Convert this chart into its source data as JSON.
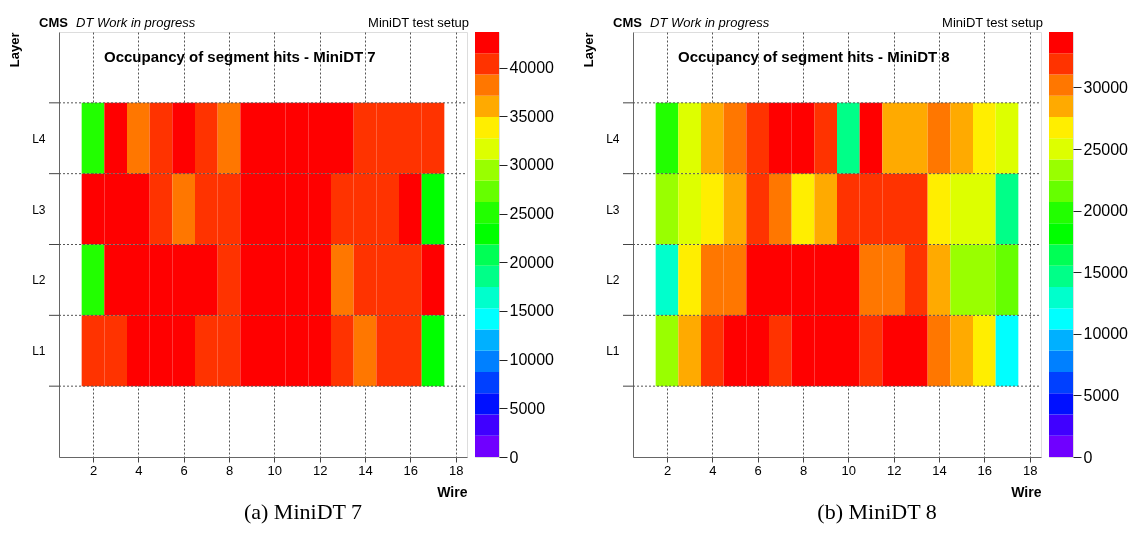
{
  "chart_data": [
    {
      "type": "heatmap",
      "title": "Occupancy of segment hits - MiniDT 7",
      "xlabel": "Wire",
      "ylabel": "Layer",
      "annotations": [
        "CMS",
        "DT Work in progress",
        "MiniDT test setup",
        "(a) MiniDT 7"
      ],
      "x": [
        2,
        3,
        4,
        5,
        6,
        7,
        8,
        9,
        10,
        11,
        12,
        13,
        14,
        15,
        16,
        17
      ],
      "y_categories": [
        "L4",
        "L3",
        "L2",
        "L1"
      ],
      "cells": [
        [
          25000,
          42500,
          38200,
          40400,
          42500,
          40400,
          38200,
          42500,
          42500,
          42500,
          42500,
          42500,
          40400,
          40400,
          40400,
          40400
        ],
        [
          42500,
          42500,
          42500,
          40400,
          38200,
          40400,
          40400,
          42500,
          42500,
          42500,
          42500,
          40400,
          40400,
          40400,
          42500,
          23000
        ],
        [
          25000,
          42500,
          42500,
          42500,
          42500,
          42500,
          40400,
          42500,
          42500,
          42500,
          42500,
          38200,
          40400,
          40400,
          40400,
          42500
        ],
        [
          40400,
          40400,
          42500,
          42500,
          42500,
          40400,
          40400,
          42500,
          42500,
          42500,
          42500,
          40400,
          38200,
          40400,
          40400,
          23000
        ]
      ],
      "xlim": [
        0.5,
        18.5
      ],
      "xticks": [
        2,
        4,
        6,
        8,
        10,
        12,
        14,
        16,
        18
      ],
      "clim": [
        0,
        43650
      ],
      "cticks": [
        0,
        5000,
        10000,
        15000,
        20000,
        25000,
        30000,
        35000,
        40000
      ],
      "grid": true
    },
    {
      "type": "heatmap",
      "title": "Occupancy of segment hits - MiniDT 8",
      "xlabel": "Wire",
      "ylabel": "Layer",
      "annotations": [
        "CMS",
        "DT Work in progress",
        "MiniDT test setup",
        "(b) MiniDT 8"
      ],
      "x": [
        2,
        3,
        4,
        5,
        6,
        7,
        8,
        9,
        10,
        11,
        12,
        13,
        14,
        15,
        16,
        17
      ],
      "y_categories": [
        "L4",
        "L3",
        "L2",
        "L1"
      ],
      "cells": [
        [
          19000,
          25000,
          28500,
          30200,
          31900,
          33600,
          33600,
          31900,
          14700,
          33600,
          28500,
          28500,
          30200,
          28500,
          26700,
          25000
        ],
        [
          23300,
          25000,
          26700,
          28500,
          31900,
          30200,
          26700,
          28500,
          31900,
          31900,
          31900,
          31900,
          26700,
          25000,
          25000,
          14700
        ],
        [
          12900,
          26700,
          30200,
          30200,
          33600,
          33600,
          33600,
          33600,
          33600,
          30200,
          30200,
          31900,
          28500,
          23300,
          23300,
          21600
        ],
        [
          23300,
          28500,
          31900,
          33600,
          33600,
          31900,
          33600,
          33600,
          33600,
          31900,
          33600,
          33600,
          30200,
          28500,
          26700,
          11200
        ]
      ],
      "xlim": [
        0.5,
        18.5
      ],
      "xticks": [
        2,
        4,
        6,
        8,
        10,
        12,
        14,
        16,
        18
      ],
      "clim": [
        0,
        34500
      ],
      "cticks": [
        0,
        5000,
        10000,
        15000,
        20000,
        25000,
        30000
      ],
      "grid": true
    }
  ]
}
